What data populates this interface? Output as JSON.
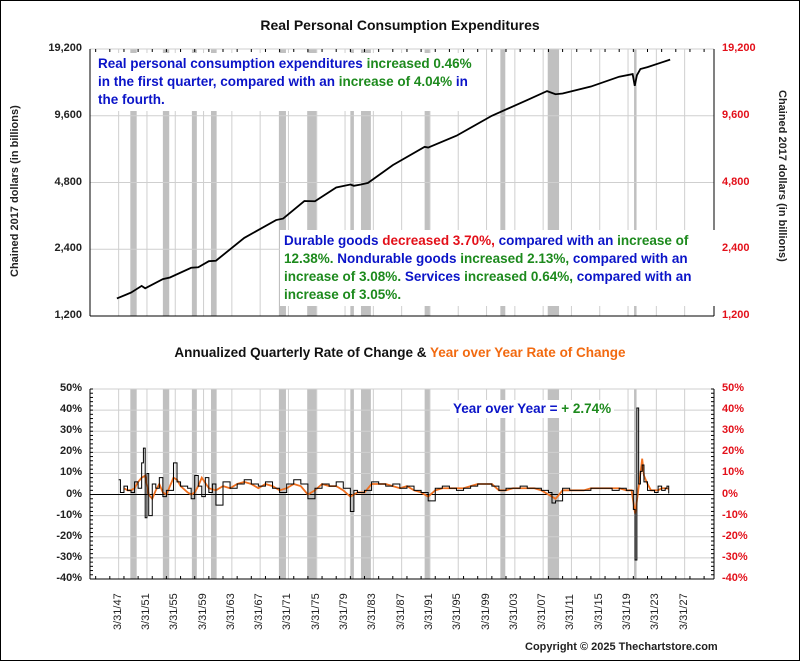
{
  "chart_data": [
    {
      "type": "line",
      "title": "Real Personal Consumption Expenditures",
      "ylabel_left": "Chained 2017 dollars (in billions)",
      "ylabel_right": "Chained 2017 dollars (in billions)",
      "yscale": "log",
      "ylim": [
        1200,
        19200
      ],
      "yticks": [
        "19,200",
        "9,600",
        "4,800",
        "2,400",
        "1,200"
      ],
      "ytick_values": [
        19200,
        9600,
        4800,
        2400,
        1200
      ],
      "xlim": [
        1943.2,
        2031.4
      ],
      "grid": true,
      "series": [
        {
          "name": "Real PCE",
          "color": "#000000",
          "x": [
            1947.0,
            1949.0,
            1950.5,
            1951.0,
            1953.5,
            1954.5,
            1957.5,
            1958.5,
            1960.0,
            1961.0,
            1965.0,
            1969.5,
            1970.5,
            1973.5,
            1975.0,
            1978.0,
            1980.0,
            1980.5,
            1981.5,
            1982.5,
            1986.0,
            1990.5,
            1991.0,
            1995.0,
            2000.0,
            2005.0,
            2007.8,
            2009.0,
            2010.0,
            2014.0,
            2018.0,
            2019.9,
            2020.2,
            2020.5,
            2021.0,
            2022.0,
            2024.0,
            2025.2
          ],
          "values": [
            1440,
            1530,
            1640,
            1600,
            1760,
            1790,
            1980,
            1990,
            2120,
            2130,
            2700,
            3250,
            3300,
            3960,
            3950,
            4560,
            4700,
            4640,
            4700,
            4780,
            5750,
            6950,
            6900,
            7800,
            9600,
            11300,
            12400,
            12000,
            12100,
            13000,
            14400,
            14800,
            13100,
            14600,
            15600,
            15900,
            16700,
            17200
          ]
        }
      ],
      "recessions": [
        [
          1948.9,
          1949.8
        ],
        [
          1953.5,
          1954.4
        ],
        [
          1957.6,
          1958.3
        ],
        [
          1960.3,
          1961.1
        ],
        [
          1969.9,
          1970.9
        ],
        [
          1973.9,
          1975.2
        ],
        [
          1980.0,
          1980.5
        ],
        [
          1981.5,
          1982.9
        ],
        [
          1990.5,
          1991.2
        ],
        [
          2001.2,
          2001.9
        ],
        [
          2007.9,
          2009.5
        ],
        [
          2020.1,
          2020.4
        ]
      ],
      "annotations": [
        {
          "segments": [
            {
              "text": "Real personal consumption expenditures ",
              "color": "blue"
            },
            {
              "text": "increased 0.46%",
              "color": "green"
            },
            {
              "text": " in the first quarter, compared with an ",
              "color": "blue"
            },
            {
              "text": "increase of 4.04%",
              "color": "green"
            },
            {
              "text": " in the fourth.",
              "color": "blue"
            }
          ]
        },
        {
          "segments": [
            {
              "text": "Durable goods ",
              "color": "blue"
            },
            {
              "text": "decreased 3.70%,",
              "color": "red"
            },
            {
              "text": " compared with an ",
              "color": "blue"
            },
            {
              "text": "increase of 12.38%.",
              "color": "green"
            },
            {
              "text": "  Nondurable goods ",
              "color": "blue"
            },
            {
              "text": "increased 2.13%,",
              "color": "green"
            },
            {
              "text": " compared with an ",
              "color": "blue"
            },
            {
              "text": "increase of 3.08%.",
              "color": "green"
            },
            {
              "text": "  Services ",
              "color": "blue"
            },
            {
              "text": "increased 0.64%,",
              "color": "green"
            },
            {
              "text": " compared with an ",
              "color": "blue"
            },
            {
              "text": "increase of 3.05%.",
              "color": "green"
            }
          ]
        }
      ]
    },
    {
      "type": "line",
      "title_part1": "Annualized Quarterly Rate of Change & ",
      "title_part2": "Year over Year Rate of Change",
      "ylim": [
        -40,
        50
      ],
      "yticks": [
        "50%",
        "40%",
        "30%",
        "20%",
        "10%",
        "0%",
        "-10%",
        "-20%",
        "-30%",
        "-40%"
      ],
      "ytick_values": [
        50,
        40,
        30,
        20,
        10,
        0,
        -10,
        -20,
        -30,
        -40
      ],
      "xlim": [
        1943.2,
        2031.4
      ],
      "xticks": [
        "3/31/47",
        "3/31/51",
        "3/31/55",
        "3/31/59",
        "3/31/63",
        "3/31/67",
        "3/31/71",
        "3/31/75",
        "3/31/79",
        "3/31/83",
        "3/31/87",
        "3/31/91",
        "3/31/95",
        "3/31/99",
        "3/31/03",
        "3/31/07",
        "3/31/11",
        "3/31/15",
        "3/31/19",
        "3/31/23",
        "3/31/27"
      ],
      "xtick_values": [
        1947.25,
        1951.25,
        1955.25,
        1959.25,
        1963.25,
        1967.25,
        1971.25,
        1975.25,
        1979.25,
        1983.25,
        1987.25,
        1991.25,
        1995.25,
        1999.25,
        2003.25,
        2007.25,
        2011.25,
        2015.25,
        2019.25,
        2023.25,
        2027.25
      ],
      "grid": true,
      "series": [
        {
          "name": "Annualized Quarterly Rate of Change",
          "color": "#000000",
          "x": [
            1947.25,
            1947.5,
            1948.0,
            1948.5,
            1949.0,
            1949.5,
            1950.0,
            1950.5,
            1950.75,
            1951.0,
            1951.25,
            1951.5,
            1952.0,
            1952.5,
            1953.0,
            1953.5,
            1954.0,
            1955.0,
            1955.5,
            1956.0,
            1957.0,
            1957.5,
            1958.0,
            1958.5,
            1959.0,
            1959.5,
            1960.0,
            1960.5,
            1961.0,
            1962.0,
            1963.0,
            1964.0,
            1965.0,
            1966.0,
            1967.0,
            1968.0,
            1969.0,
            1970.0,
            1971.0,
            1972.0,
            1973.0,
            1974.0,
            1975.0,
            1976.0,
            1977.0,
            1978.0,
            1979.0,
            1980.0,
            1980.5,
            1981.0,
            1982.0,
            1983.0,
            1984.0,
            1985.0,
            1986.0,
            1987.0,
            1988.0,
            1989.0,
            1990.0,
            1991.0,
            1992.0,
            1993.0,
            1994.0,
            1995.0,
            1996.0,
            1997.0,
            1998.0,
            1999.0,
            2000.0,
            2001.0,
            2002.0,
            2003.0,
            2004.0,
            2005.0,
            2006.0,
            2007.0,
            2008.0,
            2008.5,
            2009.0,
            2010.0,
            2011.0,
            2012.0,
            2013.0,
            2014.0,
            2015.0,
            2016.0,
            2017.0,
            2018.0,
            2019.0,
            2019.75,
            2020.0,
            2020.25,
            2020.5,
            2020.75,
            2021.0,
            2021.25,
            2021.5,
            2022.0,
            2022.5,
            2023.0,
            2023.5,
            2024.0,
            2024.5,
            2024.75,
            2025.0
          ],
          "values": [
            7,
            1,
            4,
            2,
            1,
            6,
            3,
            15,
            22,
            -11,
            10,
            -10,
            5,
            3,
            8,
            -1,
            2,
            15,
            6,
            4,
            3,
            -2,
            9,
            4,
            -1,
            8,
            1,
            5,
            -5,
            6,
            3,
            5,
            7,
            5,
            4,
            6,
            3,
            1,
            5,
            7,
            5,
            -2,
            3,
            5,
            4,
            6,
            3,
            -8,
            2,
            1,
            2,
            6,
            5,
            4,
            5,
            3,
            4,
            2,
            1,
            -3,
            3,
            4,
            3,
            2,
            3,
            4,
            5,
            5,
            4,
            2,
            3,
            3,
            4,
            3,
            3,
            2,
            1,
            -4,
            -3,
            3,
            2,
            2,
            2,
            3,
            3,
            3,
            2,
            3,
            2,
            2,
            -7,
            -31,
            41,
            5,
            11,
            14,
            6,
            2,
            2,
            1,
            4,
            2,
            3,
            4,
            0.5
          ]
        },
        {
          "name": "Year over Year Rate of Change",
          "color": "#f07020",
          "x": [
            1948.0,
            1948.5,
            1949.0,
            1949.5,
            1950.0,
            1950.5,
            1951.0,
            1951.5,
            1952.0,
            1952.5,
            1953.0,
            1953.5,
            1954.0,
            1954.5,
            1955.0,
            1955.5,
            1956.0,
            1957.0,
            1957.5,
            1958.0,
            1958.5,
            1959.0,
            1960.0,
            1961.0,
            1962.0,
            1963.0,
            1964.0,
            1965.0,
            1966.0,
            1967.0,
            1968.0,
            1969.0,
            1970.0,
            1971.0,
            1972.0,
            1973.0,
            1974.0,
            1975.0,
            1976.0,
            1977.0,
            1978.0,
            1979.0,
            1980.0,
            1981.0,
            1982.0,
            1983.0,
            1984.0,
            1985.0,
            1986.0,
            1987.0,
            1988.0,
            1989.0,
            1990.0,
            1991.0,
            1992.0,
            1993.0,
            1994.0,
            1995.0,
            1996.0,
            1997.0,
            1998.0,
            1999.0,
            2000.0,
            2001.0,
            2002.0,
            2003.0,
            2004.0,
            2005.0,
            2006.0,
            2007.0,
            2008.0,
            2009.0,
            2009.5,
            2010.0,
            2011.0,
            2012.0,
            2013.0,
            2014.0,
            2015.0,
            2016.0,
            2017.0,
            2018.0,
            2019.0,
            2019.75,
            2020.25,
            2020.5,
            2021.0,
            2021.25,
            2021.5,
            2022.0,
            2022.5,
            2023.0,
            2023.5,
            2024.0,
            2024.5,
            2025.0
          ],
          "values": [
            3,
            2,
            2,
            3,
            6,
            8,
            9,
            0,
            -2,
            2,
            5,
            1,
            0,
            4,
            8,
            7,
            4,
            1,
            0,
            1,
            4,
            8,
            3,
            2,
            4,
            3,
            5,
            6,
            5,
            3,
            5,
            4,
            2,
            3,
            5,
            4,
            0,
            2,
            5,
            4,
            4,
            2,
            -1,
            1,
            1,
            5,
            5,
            5,
            4,
            3,
            4,
            2,
            1,
            -1,
            2,
            3,
            3,
            3,
            3,
            4,
            5,
            5,
            5,
            2,
            2,
            3,
            3,
            3,
            3,
            2,
            0,
            -2,
            0,
            2,
            2,
            2,
            2,
            3,
            3,
            3,
            3,
            3,
            2,
            2,
            -9,
            -3,
            10,
            17,
            9,
            5,
            2,
            2,
            2,
            3,
            3,
            2.74
          ]
        }
      ],
      "annotation": {
        "label": "Year over Year = ",
        "value": "+ 2.74%"
      }
    }
  ],
  "footer": {
    "copyright": "Copyright © 2025 Thechartstore.com"
  }
}
